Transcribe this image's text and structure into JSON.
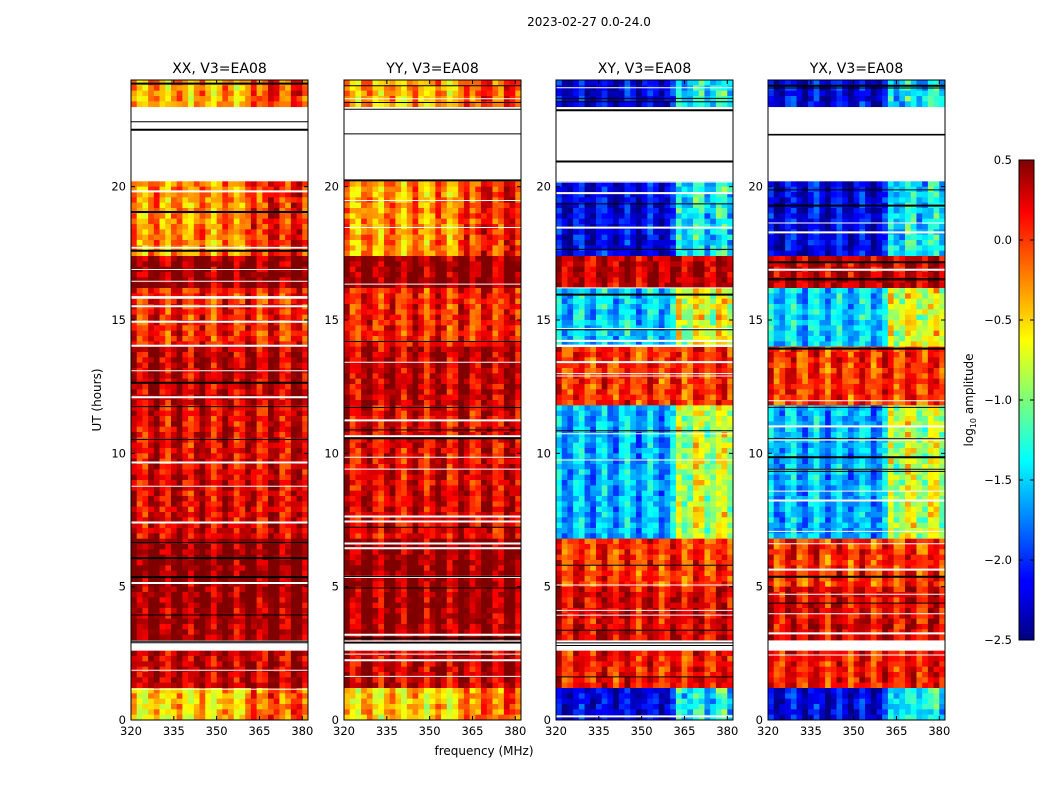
{
  "chart_data": {
    "type": "heatmap",
    "suptitle": "2023-02-27 0.0-24.0",
    "xlabel": "frequency (MHz)",
    "ylabel": "UT (hours)",
    "xlim": [
      320,
      382
    ],
    "ylim": [
      0,
      24
    ],
    "xticks": [
      320,
      335,
      350,
      365,
      380
    ],
    "yticks": [
      0,
      5,
      10,
      15,
      20
    ],
    "colormap": "jet",
    "colorbar": {
      "label": "log10 amplitude",
      "label_prefix": "log",
      "label_sub": "10",
      "label_suffix": " amplitude",
      "range": [
        -2.5,
        0.5
      ],
      "ticks": [
        0.5,
        0.0,
        -0.5,
        -1.0,
        -1.5,
        -2.0,
        -2.5
      ],
      "tick_labels": [
        "0.5",
        "0.0",
        "−0.5",
        "−1.0",
        "−1.5",
        "−2.0",
        "−2.5"
      ]
    },
    "blank_ut_ranges": [
      [
        2.6,
        3.0
      ],
      [
        20.2,
        21.0
      ],
      [
        21.6,
        23.0
      ]
    ],
    "ut_bands": [
      {
        "from": 0.0,
        "to": 1.2,
        "parallel": -0.5,
        "cross": -2.2
      },
      {
        "from": 1.2,
        "to": 2.6,
        "parallel": 0.3,
        "cross": 0.1
      },
      {
        "from": 3.0,
        "to": 5.0,
        "parallel": 0.4,
        "cross": 0.2
      },
      {
        "from": 5.0,
        "to": 6.8,
        "parallel": 0.45,
        "cross": 0.0
      },
      {
        "from": 6.8,
        "to": 11.8,
        "parallel": 0.2,
        "cross": -1.6
      },
      {
        "from": 11.8,
        "to": 14.0,
        "parallel": 0.3,
        "cross": 0.0
      },
      {
        "from": 14.0,
        "to": 16.2,
        "parallel": 0.05,
        "cross": -1.5
      },
      {
        "from": 16.2,
        "to": 17.3,
        "parallel": 0.45,
        "cross": 0.3
      },
      {
        "from": 17.3,
        "to": 20.2,
        "parallel": -0.3,
        "cross": -2.2
      },
      {
        "from": 23.0,
        "to": 24.0,
        "parallel": -0.4,
        "cross": -2.2
      }
    ],
    "panels": [
      {
        "title": "XX, V3=EA08",
        "kind": "parallel"
      },
      {
        "title": "YY, V3=EA08",
        "kind": "parallel"
      },
      {
        "title": "XY, V3=EA08",
        "kind": "cross"
      },
      {
        "title": "YX, V3=EA08",
        "kind": "cross"
      }
    ]
  }
}
